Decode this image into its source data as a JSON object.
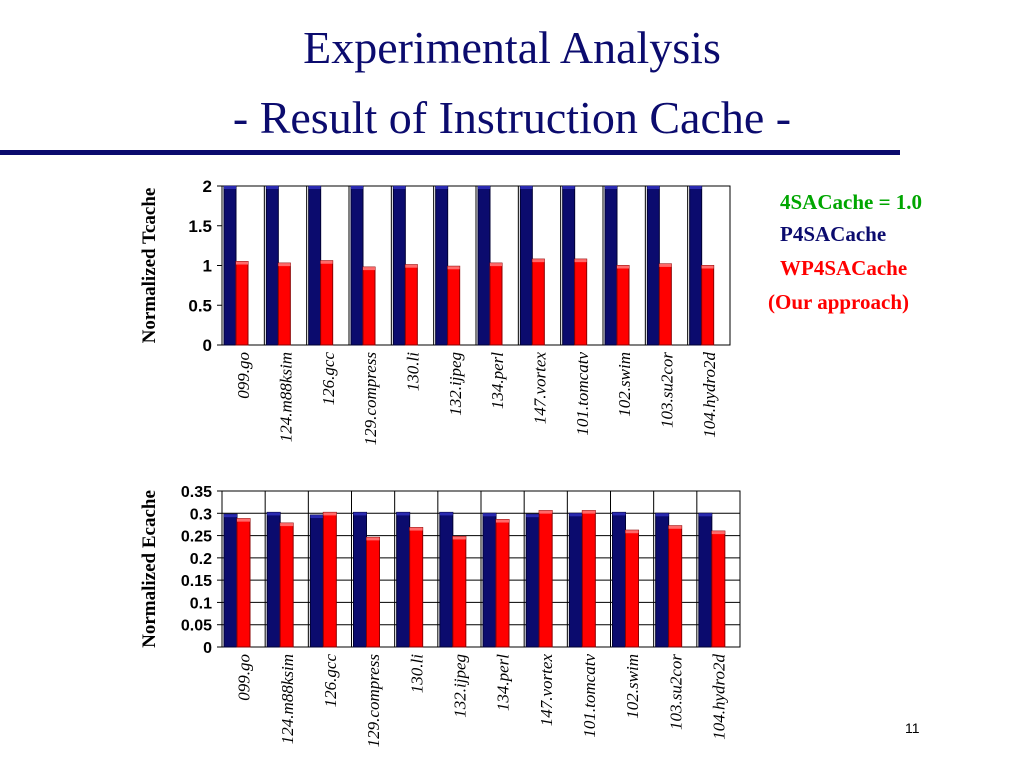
{
  "slide": {
    "title_line1": "Experimental Analysis",
    "title_line2": "- Result of Instruction Cache -",
    "page_number": "11"
  },
  "legend": {
    "baseline": "4SACache = 1.0",
    "series1": "P4SACache",
    "series2": "WP4SACache",
    "series2_note": "(Our approach)"
  },
  "colors": {
    "series1": "#0b0b6e",
    "series2": "#ff0000",
    "baseline_text": "#00a600",
    "title": "#0b0b6e"
  },
  "chart_data": [
    {
      "type": "bar",
      "ylabel": "Normalized Tcache",
      "ylim": [
        0,
        2
      ],
      "yticks": [
        "0",
        "0.5",
        "1",
        "1.5",
        "2"
      ],
      "grid": "vertical lines between categories",
      "categories": [
        "099.go",
        "124.m88ksim",
        "126.gcc",
        "129.compress",
        "130.li",
        "132.ijpeg",
        "134.perl",
        "147.vortex",
        "101.tomcatv",
        "102.swim",
        "103.su2cor",
        "104.hydro2d"
      ],
      "series": [
        {
          "name": "P4SACache",
          "values": [
            2.0,
            2.0,
            2.0,
            2.0,
            2.0,
            2.0,
            2.0,
            2.0,
            2.0,
            2.0,
            2.0,
            2.0
          ]
        },
        {
          "name": "WP4SACache",
          "values": [
            1.05,
            1.03,
            1.06,
            0.98,
            1.01,
            0.99,
            1.03,
            1.08,
            1.08,
            1.0,
            1.02,
            1.0
          ]
        }
      ]
    },
    {
      "type": "bar",
      "ylabel": "Normalized Ecache",
      "ylim": [
        0,
        0.35
      ],
      "yticks": [
        "0",
        "0.05",
        "0.1",
        "0.15",
        "0.2",
        "0.25",
        "0.3",
        "0.35"
      ],
      "grid": "horizontal and vertical lines",
      "categories": [
        "099.go",
        "124.m88ksim",
        "126.gcc",
        "129.compress",
        "130.li",
        "132.ijpeg",
        "134.perl",
        "147.vortex",
        "101.tomcatv",
        "102.swim",
        "103.su2cor",
        "104.hydro2d"
      ],
      "series": [
        {
          "name": "P4SACache",
          "values": [
            0.298,
            0.302,
            0.296,
            0.302,
            0.302,
            0.302,
            0.3,
            0.298,
            0.3,
            0.302,
            0.3,
            0.3
          ]
        },
        {
          "name": "WP4SACache",
          "values": [
            0.288,
            0.278,
            0.302,
            0.246,
            0.268,
            0.248,
            0.286,
            0.306,
            0.306,
            0.262,
            0.272,
            0.26
          ]
        }
      ]
    }
  ]
}
